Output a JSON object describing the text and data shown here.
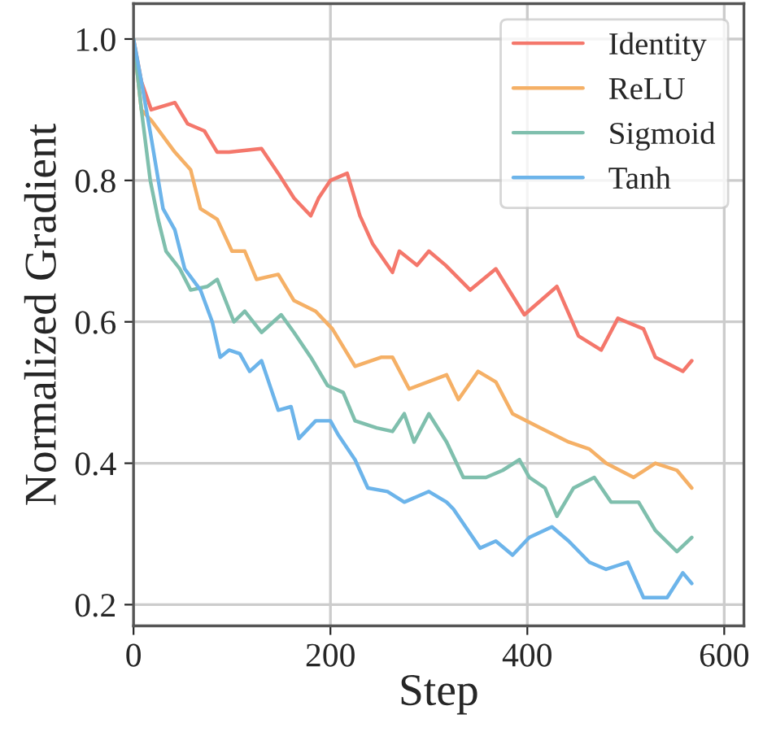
{
  "chart_data": {
    "type": "line",
    "xlabel": "Step",
    "ylabel": "Normalized Gradient",
    "xlim": [
      0,
      620
    ],
    "ylim": [
      0.17,
      1.05
    ],
    "xticks": [
      0,
      200,
      400,
      600
    ],
    "yticks": [
      0.2,
      0.4,
      0.6,
      0.8,
      {
        "value": 1,
        "label": "1.0"
      }
    ],
    "grid": true,
    "legend": "top right",
    "line_style": "solid",
    "marker": "none",
    "series": [
      {
        "name": "Identity",
        "color": "#f4776b",
        "x": [
          0,
          8,
          18,
          42,
          55,
          72,
          85,
          97,
          130,
          147,
          163,
          180,
          188,
          200,
          217,
          230,
          243,
          263,
          270,
          288,
          300,
          317,
          342,
          368,
          397,
          430,
          452,
          475,
          492,
          518,
          530,
          558,
          567
        ],
        "values": [
          1.0,
          0.94,
          0.9,
          0.91,
          0.88,
          0.87,
          0.84,
          0.84,
          0.845,
          0.81,
          0.775,
          0.75,
          0.775,
          0.8,
          0.81,
          0.75,
          0.71,
          0.67,
          0.7,
          0.68,
          0.7,
          0.68,
          0.645,
          0.675,
          0.61,
          0.65,
          0.58,
          0.56,
          0.605,
          0.59,
          0.55,
          0.53,
          0.545
        ]
      },
      {
        "name": "ReLU",
        "color": "#f5b066",
        "x": [
          0,
          8,
          18,
          42,
          58,
          68,
          85,
          100,
          113,
          125,
          147,
          163,
          185,
          202,
          225,
          252,
          263,
          280,
          318,
          330,
          350,
          368,
          385,
          413,
          442,
          463,
          480,
          508,
          530,
          552,
          567
        ],
        "values": [
          1.0,
          0.9,
          0.885,
          0.84,
          0.815,
          0.76,
          0.745,
          0.7,
          0.7,
          0.66,
          0.667,
          0.63,
          0.615,
          0.59,
          0.537,
          0.55,
          0.55,
          0.505,
          0.525,
          0.49,
          0.53,
          0.515,
          0.47,
          0.45,
          0.43,
          0.42,
          0.4,
          0.38,
          0.4,
          0.39,
          0.365
        ]
      },
      {
        "name": "Sigmoid",
        "color": "#7fbfad",
        "x": [
          0,
          8,
          17,
          25,
          33,
          47,
          58,
          75,
          85,
          102,
          113,
          130,
          150,
          163,
          180,
          197,
          213,
          225,
          247,
          263,
          275,
          285,
          300,
          318,
          335,
          358,
          375,
          392,
          402,
          418,
          430,
          447,
          468,
          485,
          513,
          530,
          552,
          567
        ],
        "values": [
          1.0,
          0.9,
          0.8,
          0.745,
          0.7,
          0.675,
          0.645,
          0.65,
          0.66,
          0.6,
          0.615,
          0.585,
          0.61,
          0.585,
          0.55,
          0.51,
          0.5,
          0.46,
          0.45,
          0.445,
          0.47,
          0.43,
          0.47,
          0.43,
          0.38,
          0.38,
          0.39,
          0.405,
          0.38,
          0.365,
          0.325,
          0.365,
          0.38,
          0.345,
          0.345,
          0.305,
          0.275,
          0.295
        ]
      },
      {
        "name": "Tanh",
        "color": "#6cb4ea",
        "x": [
          0,
          8,
          18,
          30,
          42,
          52,
          68,
          80,
          88,
          97,
          108,
          118,
          130,
          147,
          160,
          168,
          185,
          200,
          208,
          225,
          238,
          258,
          275,
          300,
          318,
          325,
          352,
          368,
          385,
          402,
          425,
          442,
          463,
          480,
          502,
          518,
          542,
          558,
          567
        ],
        "values": [
          1.0,
          0.94,
          0.86,
          0.76,
          0.73,
          0.675,
          0.645,
          0.6,
          0.55,
          0.56,
          0.555,
          0.53,
          0.545,
          0.475,
          0.48,
          0.435,
          0.46,
          0.46,
          0.44,
          0.405,
          0.365,
          0.36,
          0.345,
          0.36,
          0.345,
          0.335,
          0.28,
          0.29,
          0.27,
          0.295,
          0.31,
          0.29,
          0.26,
          0.25,
          0.26,
          0.21,
          0.21,
          0.245,
          0.23
        ]
      }
    ]
  }
}
